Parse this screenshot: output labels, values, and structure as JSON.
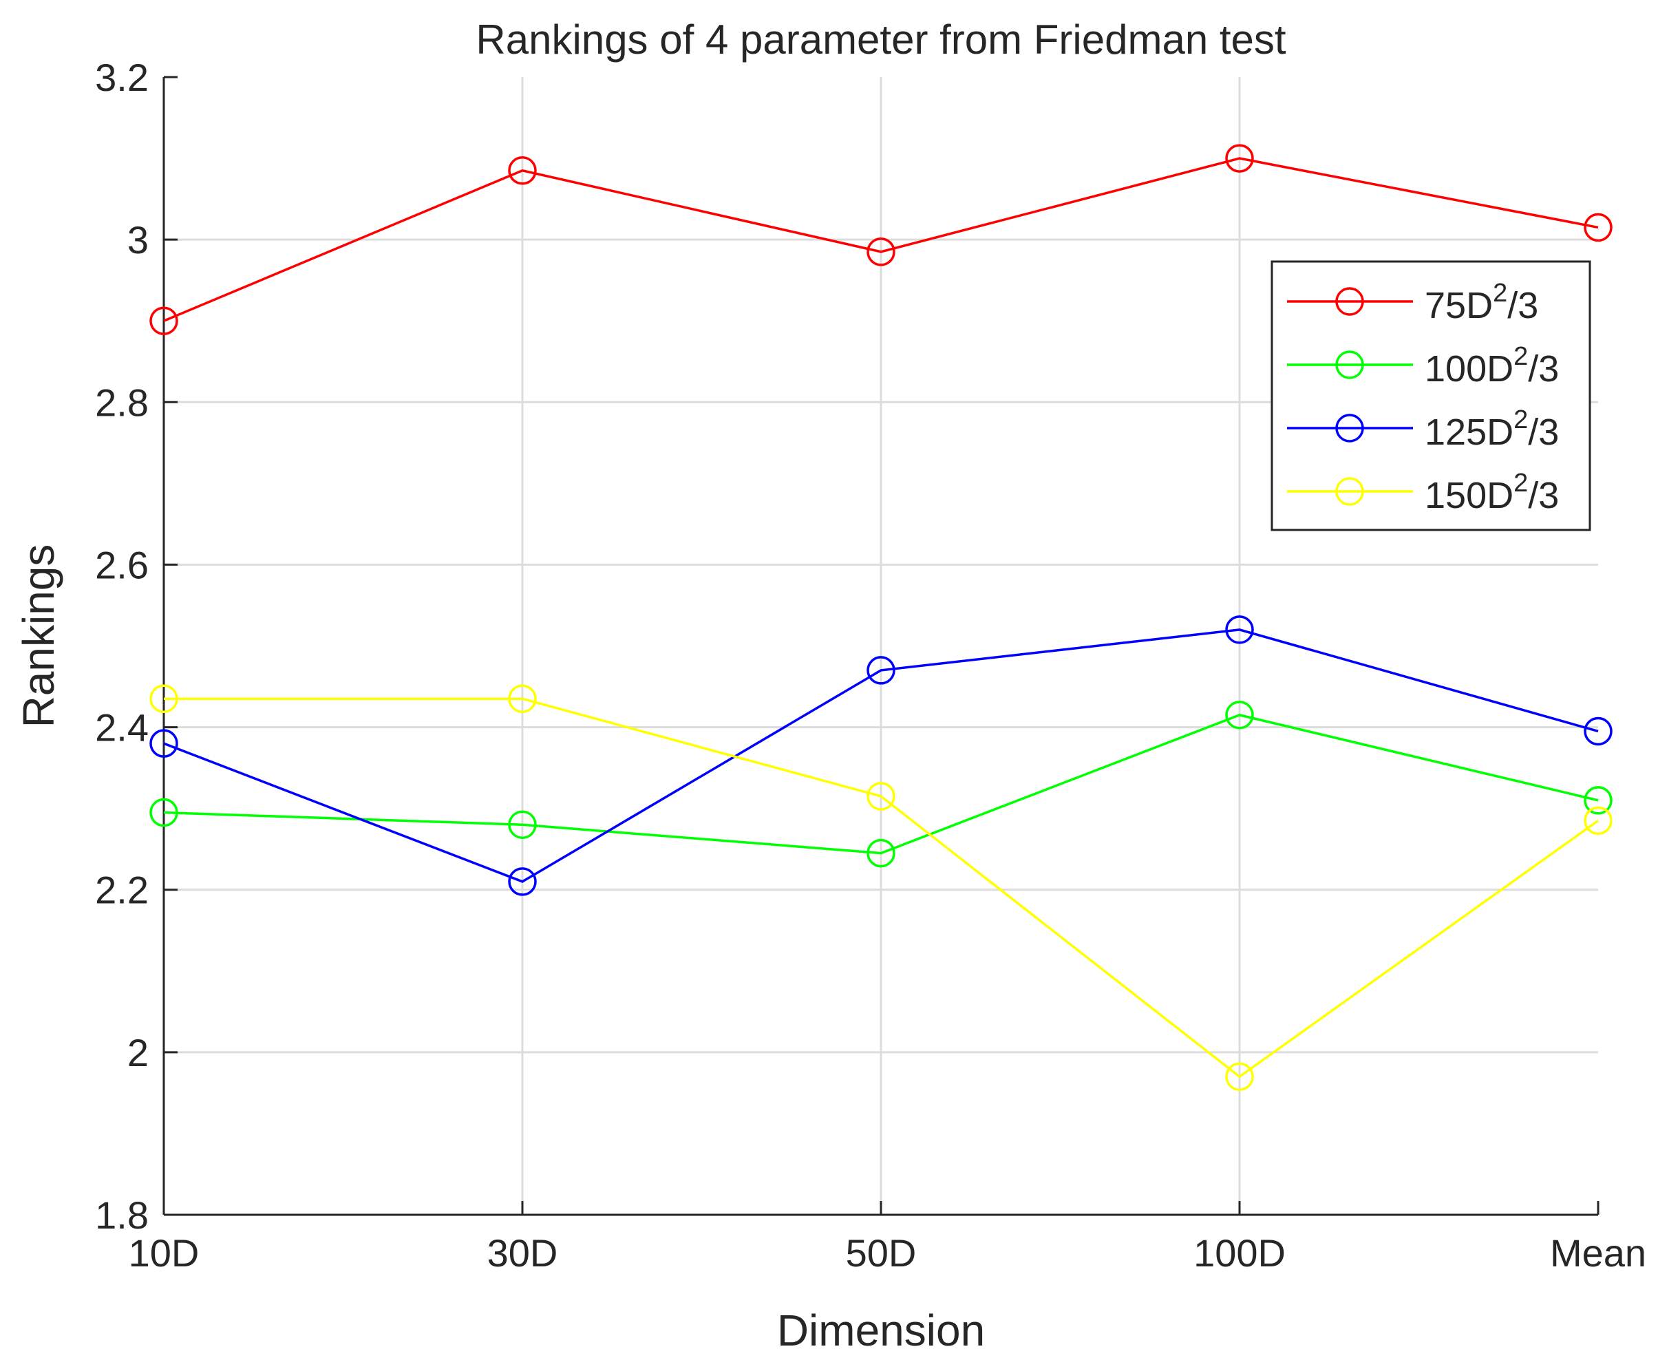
{
  "chart_data": {
    "type": "line",
    "title": "Rankings of 4 parameter from Friedman test",
    "xlabel": "Dimension",
    "ylabel": "Rankings",
    "categories": [
      "10D",
      "30D",
      "50D",
      "100D",
      "Mean"
    ],
    "ylim": [
      1.8,
      3.2
    ],
    "yticks": [
      "1.8",
      "2",
      "2.2",
      "2.4",
      "2.6",
      "2.8",
      "3",
      "3.2"
    ],
    "grid": true,
    "legend_position": "top-right",
    "marker": "circle",
    "series": [
      {
        "name": "75D2/3",
        "label_base": "75D",
        "label_sup": "2",
        "label_tail": "/3",
        "color": "#ff0000",
        "values": [
          2.9,
          3.085,
          2.985,
          3.1,
          3.015
        ]
      },
      {
        "name": "100D2/3",
        "label_base": "100D",
        "label_sup": "2",
        "label_tail": "/3",
        "color": "#00ff00",
        "values": [
          2.295,
          2.28,
          2.245,
          2.415,
          2.31
        ]
      },
      {
        "name": "125D2/3",
        "label_base": "125D",
        "label_sup": "2",
        "label_tail": "/3",
        "color": "#0000ff",
        "values": [
          2.38,
          2.21,
          2.47,
          2.52,
          2.395
        ]
      },
      {
        "name": "150D2/3",
        "label_base": "150D",
        "label_sup": "2",
        "label_tail": "/3",
        "color": "#ffff00",
        "values": [
          2.435,
          2.435,
          2.315,
          1.97,
          2.285
        ]
      }
    ]
  }
}
